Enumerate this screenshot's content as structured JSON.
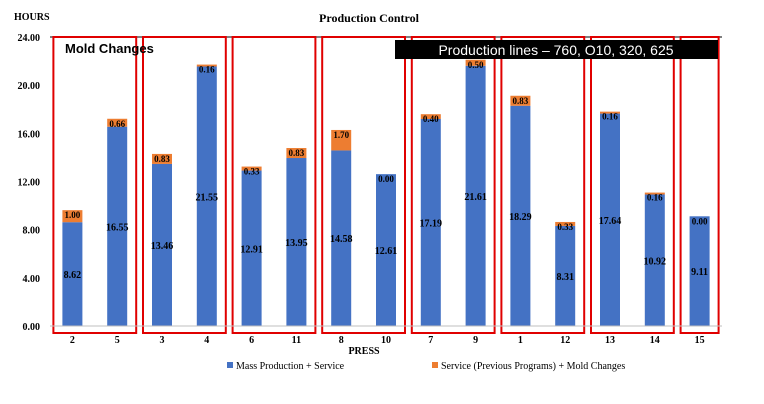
{
  "chart_data": {
    "type": "bar",
    "stacked": true,
    "title": "Production Control",
    "ylabel": "HOURS",
    "xlabel": "PRESS",
    "ylim": [
      0,
      24
    ],
    "yticks": [
      "0.00",
      "4.00",
      "8.00",
      "12.00",
      "16.00",
      "20.00",
      "24.00"
    ],
    "categories": [
      "2",
      "5",
      "3",
      "4",
      "6",
      "11",
      "8",
      "10",
      "7",
      "9",
      "1",
      "12",
      "13",
      "14",
      "15"
    ],
    "series": [
      {
        "name": "Mass Production + Service",
        "color": "#4472c4",
        "values": [
          8.62,
          16.55,
          13.46,
          21.55,
          12.91,
          13.95,
          14.58,
          12.61,
          17.19,
          21.61,
          18.29,
          8.31,
          17.64,
          10.92,
          9.11
        ],
        "labels": [
          "8.62",
          "16.55",
          "13.46",
          "21.55",
          "12.91",
          "13.95",
          "14.58",
          "12.61",
          "17.19",
          "21.61",
          "18.29",
          "8.31",
          "17.64",
          "10.92",
          "9.11"
        ]
      },
      {
        "name": "Service (Previous Programs) + Mold Changes",
        "color": "#ed7d31",
        "values": [
          1.0,
          0.66,
          0.83,
          0.16,
          0.33,
          0.83,
          1.7,
          0.0,
          0.4,
          0.5,
          0.83,
          0.33,
          0.16,
          0.16,
          0.0
        ],
        "labels": [
          "1.00",
          "0.66",
          "0.83",
          "0.16",
          "0.33",
          "0.83",
          "1.70",
          "0.00",
          "0.40",
          "0.50",
          "0.83",
          "0.33",
          "0.16",
          "0.16",
          "0.00"
        ]
      }
    ],
    "groups": [
      {
        "members": [
          "2",
          "5"
        ]
      },
      {
        "members": [
          "3",
          "4"
        ]
      },
      {
        "members": [
          "6",
          "11"
        ]
      },
      {
        "members": [
          "8",
          "10"
        ]
      },
      {
        "members": [
          "7",
          "9"
        ]
      },
      {
        "members": [
          "1",
          "12"
        ]
      },
      {
        "members": [
          "13",
          "14"
        ]
      },
      {
        "members": [
          "15"
        ]
      }
    ],
    "group_box_color": "#e00000",
    "annotations": {
      "mold_changes": "Mold Changes",
      "production_lines": "Production lines – 760, O10, 320, 625"
    },
    "legend_position": "bottom",
    "grid": false
  }
}
